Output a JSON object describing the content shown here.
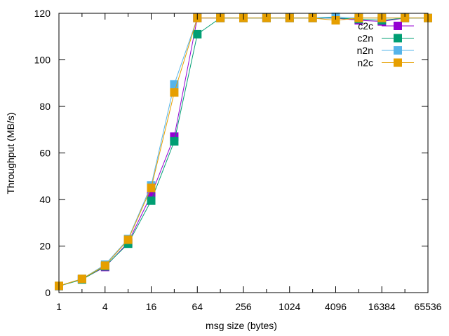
{
  "chart_data": {
    "type": "line",
    "xlabel": "msg size (bytes)",
    "ylabel": "Throughput (MB/s)",
    "x_scale": "log2",
    "xlim": [
      1,
      65536
    ],
    "ylim": [
      0,
      120
    ],
    "x_ticks": [
      1,
      4,
      16,
      64,
      256,
      1024,
      4096,
      16384,
      65536
    ],
    "y_ticks": [
      0,
      20,
      40,
      60,
      80,
      100,
      120
    ],
    "grid": false,
    "legend_position": "top-right",
    "x": [
      1,
      2,
      4,
      8,
      16,
      32,
      64,
      128,
      256,
      512,
      1024,
      2048,
      4096,
      8192,
      16384,
      32768,
      65536
    ],
    "series": [
      {
        "name": "c2c",
        "color": "#9400d3",
        "values": [
          2.8,
          5.8,
          11.0,
          21.5,
          42.0,
          67.0,
          118.0,
          118.0,
          118.0,
          118.0,
          118.0,
          118.0,
          118.0,
          117.0,
          116.5,
          118.0,
          118.0
        ]
      },
      {
        "name": "c2n",
        "color": "#009e73",
        "values": [
          2.8,
          5.6,
          11.3,
          21.0,
          39.5,
          65.0,
          111.0,
          118.0,
          118.0,
          118.0,
          118.0,
          118.0,
          118.0,
          117.5,
          117.0,
          118.0,
          118.0
        ]
      },
      {
        "name": "n2n",
        "color": "#56b4e9",
        "values": [
          2.9,
          5.9,
          12.0,
          23.0,
          46.0,
          89.5,
          118.0,
          118.0,
          118.0,
          118.0,
          118.0,
          118.0,
          118.5,
          118.0,
          118.0,
          118.0,
          118.0
        ]
      },
      {
        "name": "n2c",
        "color": "#e69f00",
        "values": [
          2.9,
          5.9,
          11.6,
          22.7,
          45.0,
          86.0,
          118.0,
          118.0,
          118.0,
          118.0,
          118.0,
          118.0,
          117.0,
          118.0,
          118.0,
          118.0,
          118.0
        ]
      }
    ]
  }
}
